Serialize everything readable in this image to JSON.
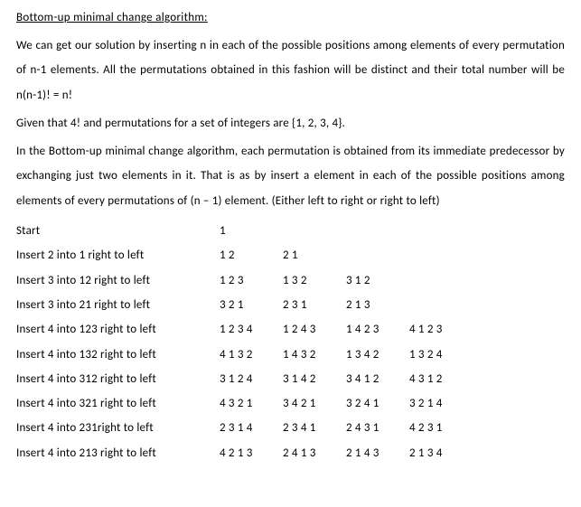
{
  "title": "Bottom-up minimal change algorithm:",
  "p1": "We can get our solution by inserting n in each of the possible positions among elements of every permutation of n-1 elements. All the permutations obtained in this fashion will be distinct and their total number will be n(n-1)! = n!",
  "p2": "Given that 4! and permutations for a set of integers are {1, 2, 3, 4}.",
  "p3": "In the Bottom-up minimal change algorithm, each permutation is obtained from its immediate predecessor by exchanging just two elements in it. That is as by insert a element in each of the possible positions among elements of every permutations of (n – 1) element. (Either left to right or right to left)",
  "rows": [
    {
      "label": "Start",
      "c": [
        "1",
        "",
        "",
        ""
      ]
    },
    {
      "label": "Insert 2 into 1 right to left",
      "c": [
        "1 2",
        "2 1",
        "",
        ""
      ]
    },
    {
      "label": "Insert 3 into 12 right to left",
      "c": [
        "1 2 3",
        "1 3 2",
        "3 1 2",
        ""
      ]
    },
    {
      "label": "Insert 3 into 21 right to left",
      "c": [
        "3 2 1",
        "2 3 1",
        "2 1 3",
        ""
      ]
    },
    {
      "label": "Insert 4 into 123 right to left",
      "c": [
        "1 2 3 4",
        "1 2 4 3",
        "1 4 2 3",
        "4 1 2 3"
      ]
    },
    {
      "label": "Insert 4 into 132 right to left",
      "c": [
        "4 1 3 2",
        "1 4 3 2",
        "1 3 4 2",
        "1 3 2 4"
      ]
    },
    {
      "label": "Insert 4 into 312 right to left",
      "c": [
        "3 1 2 4",
        "3 1 4 2",
        "3 4 1 2",
        "4 3 1 2"
      ]
    },
    {
      "label": "Insert 4 into 321 right to left",
      "c": [
        "4 3 2 1",
        "3 4 2 1",
        "3 2 4 1",
        "3 2 1 4"
      ]
    },
    {
      "label": "Insert 4 into 231right to left",
      "c": [
        "2 3 1 4",
        "2 3 4 1",
        "2 4 3 1",
        "4 2 3 1"
      ]
    },
    {
      "label": "Insert 4 into 213 right to left",
      "c": [
        "4 2 1 3",
        "2 4 1 3",
        "2 1 4 3",
        "2 1 3 4"
      ]
    }
  ]
}
